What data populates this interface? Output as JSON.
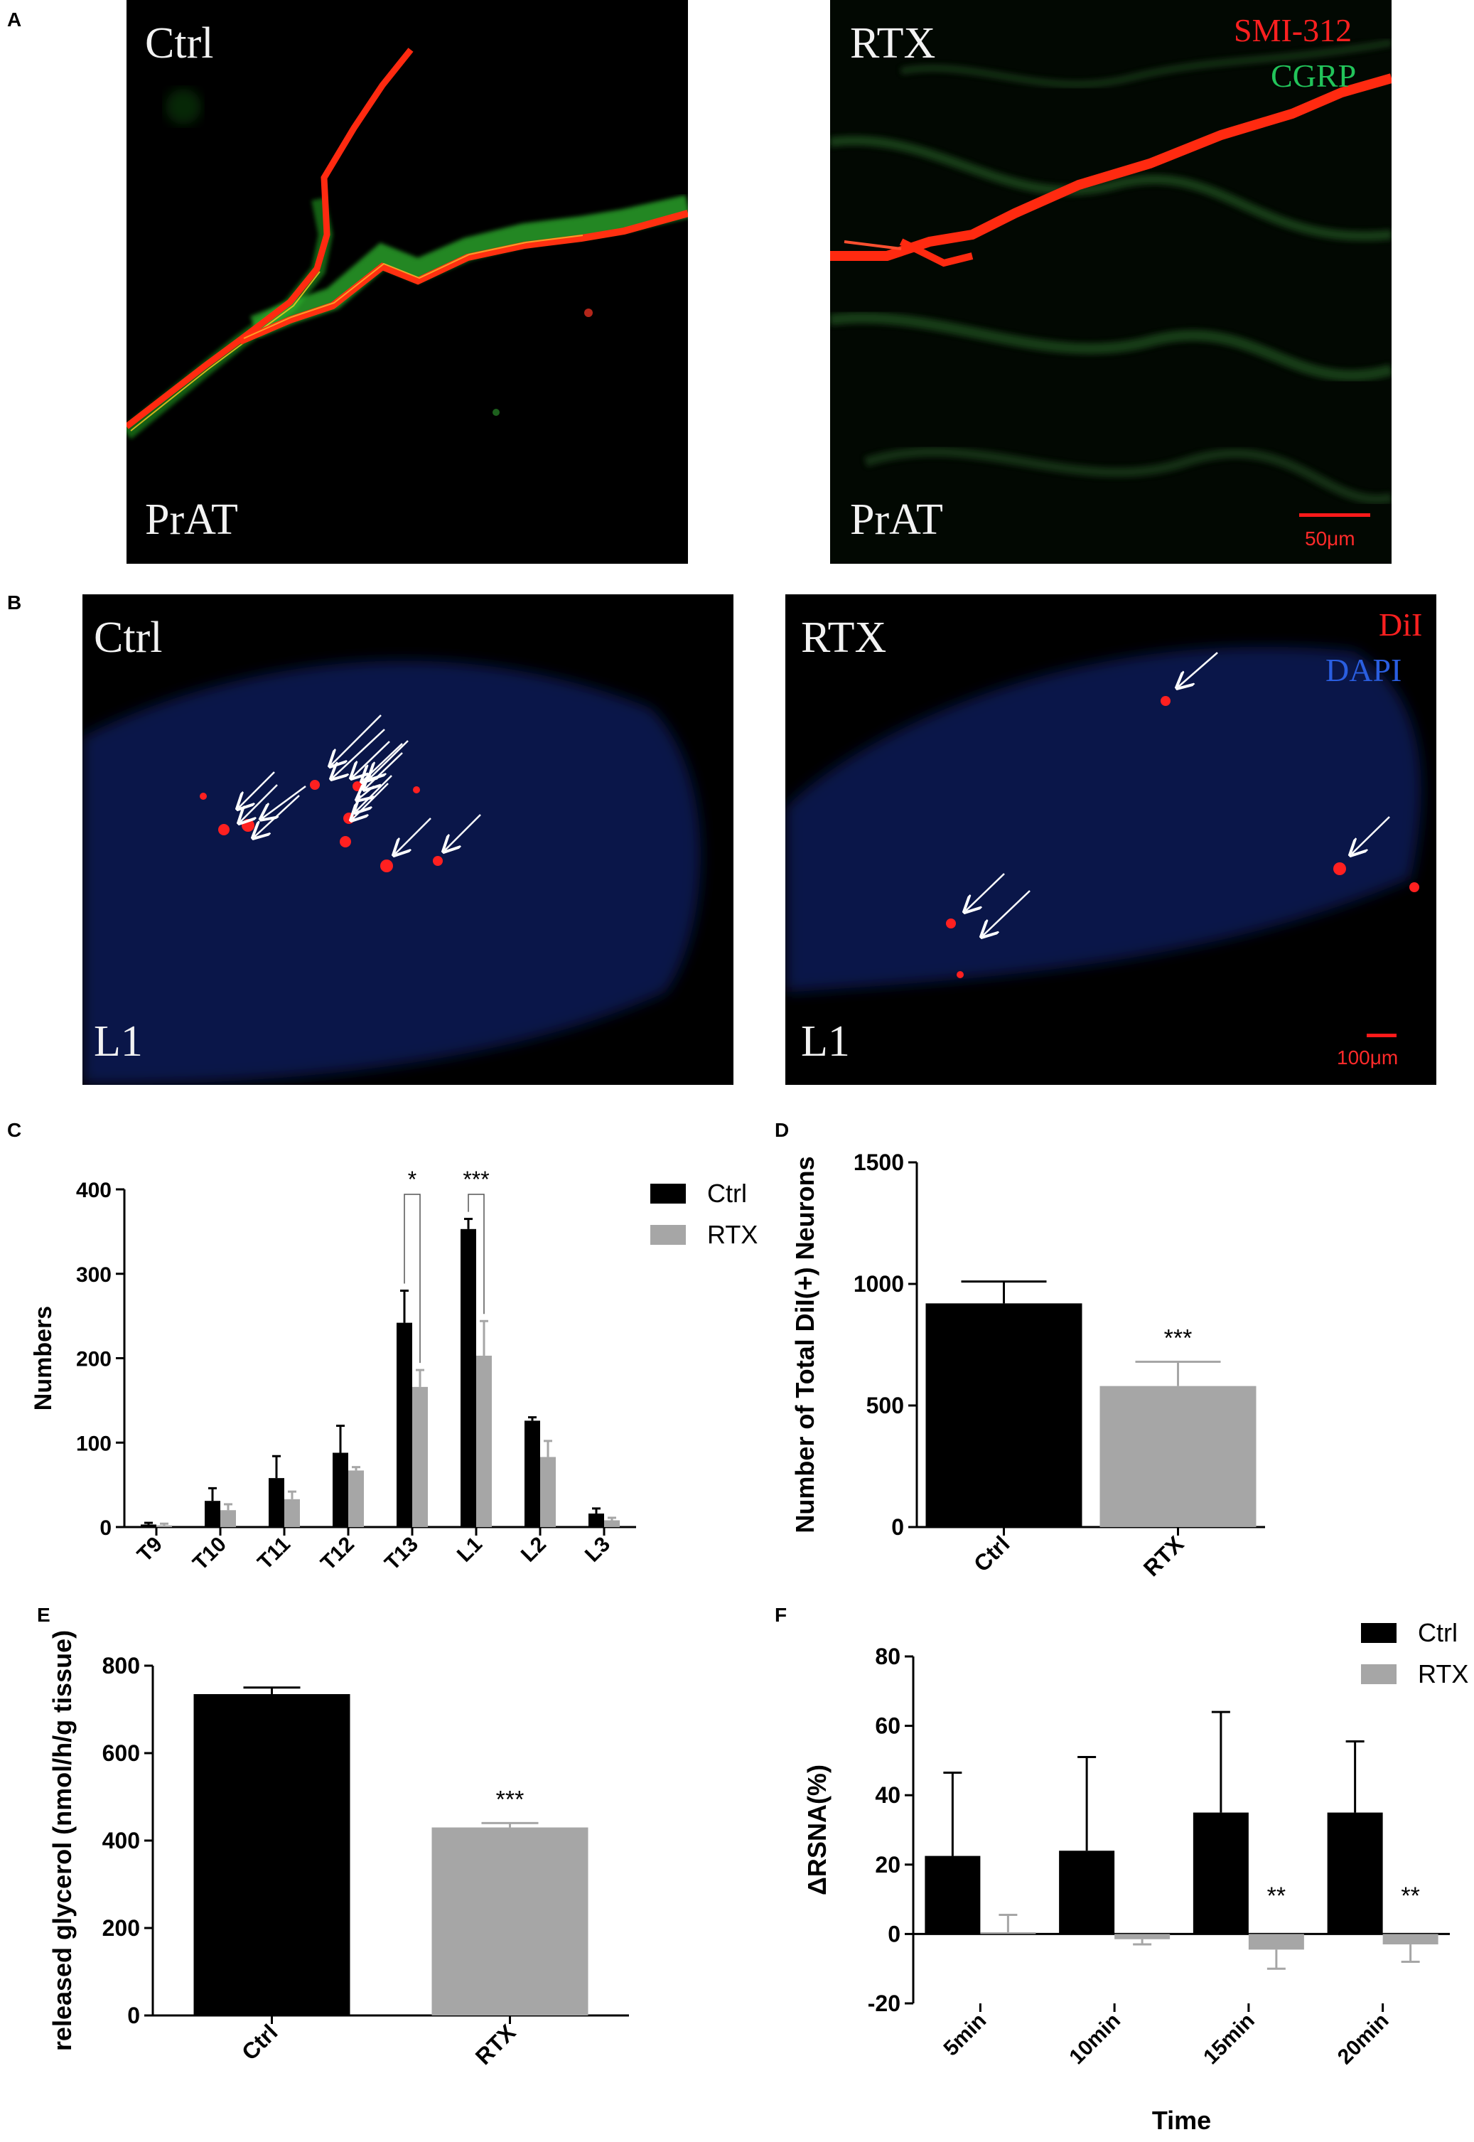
{
  "panels": {
    "A": {
      "label": "A",
      "left": {
        "group": "Ctrl",
        "tissue": "PrAT"
      },
      "right": {
        "group": "RTX",
        "tissue": "PrAT",
        "stain1": "SMI-312",
        "stain2": "CGRP",
        "scale": "50μm"
      }
    },
    "B": {
      "label": "B",
      "left": {
        "group": "Ctrl",
        "tissue": "L1"
      },
      "right": {
        "group": "RTX",
        "tissue": "L1",
        "stain1": "DiI",
        "stain2": "DAPI",
        "scale": "100μm"
      }
    },
    "C": {
      "label": "C"
    },
    "D": {
      "label": "D"
    },
    "E": {
      "label": "E"
    },
    "F": {
      "label": "F"
    }
  },
  "colors": {
    "ctrl": "#000000",
    "rtx": "#a6a6a6"
  },
  "chart_data": [
    {
      "id": "C",
      "type": "bar",
      "ylabel": "Numbers",
      "categories": [
        "T9",
        "T10",
        "T11",
        "T12",
        "T13",
        "L1",
        "L2",
        "L3"
      ],
      "series": [
        {
          "name": "Ctrl",
          "values": [
            3,
            31,
            58,
            88,
            242,
            353,
            126,
            16
          ],
          "errors": [
            2,
            15,
            26,
            32,
            38,
            12,
            4,
            6
          ]
        },
        {
          "name": "RTX",
          "values": [
            2,
            20,
            33,
            67,
            166,
            203,
            83,
            8
          ],
          "errors": [
            2,
            7,
            9,
            4,
            20,
            41,
            19,
            3
          ]
        }
      ],
      "ylim": [
        0,
        400
      ],
      "yticks": [
        "0",
        "100",
        "200",
        "300",
        "400"
      ],
      "annotations": [
        {
          "text": "*",
          "category": "T13"
        },
        {
          "text": "***",
          "category": "L1"
        }
      ],
      "legend": "top-right"
    },
    {
      "id": "D",
      "type": "bar",
      "ylabel": "Number of Total DiI(+) Neurons",
      "categories": [
        "Ctrl",
        "RTX"
      ],
      "values": [
        920,
        580
      ],
      "errors": [
        90,
        100
      ],
      "ylim": [
        0,
        1500
      ],
      "yticks": [
        "0",
        "500",
        "1000",
        "1500"
      ],
      "annotations": [
        {
          "text": "***",
          "category": "RTX"
        }
      ]
    },
    {
      "id": "E",
      "type": "bar",
      "ylabel": "released glycerol (nmol/h/g tissue)",
      "categories": [
        "Ctrl",
        "RTX"
      ],
      "values": [
        735,
        430
      ],
      "errors": [
        15,
        10
      ],
      "ylim": [
        0,
        800
      ],
      "yticks": [
        "0",
        "200",
        "400",
        "600",
        "800"
      ],
      "annotations": [
        {
          "text": "***",
          "category": "RTX"
        }
      ]
    },
    {
      "id": "F",
      "type": "bar",
      "xlabel": "Time",
      "ylabel": "ΔRSNA(%)",
      "categories": [
        "5min",
        "10min",
        "15min",
        "20min"
      ],
      "series": [
        {
          "name": "Ctrl",
          "values": [
            22.5,
            24,
            35,
            35
          ],
          "errors": [
            24,
            27,
            29,
            20.5
          ]
        },
        {
          "name": "RTX",
          "values": [
            0.5,
            -1.5,
            -4.5,
            -3
          ],
          "errors": [
            5,
            1.5,
            5.5,
            5
          ]
        }
      ],
      "ylim": [
        -20,
        80
      ],
      "yticks": [
        "-20",
        "0",
        "20",
        "40",
        "60",
        "80"
      ],
      "annotations": [
        {
          "text": "**",
          "category": "15min"
        },
        {
          "text": "**",
          "category": "20min"
        }
      ],
      "legend": "top-right"
    }
  ]
}
